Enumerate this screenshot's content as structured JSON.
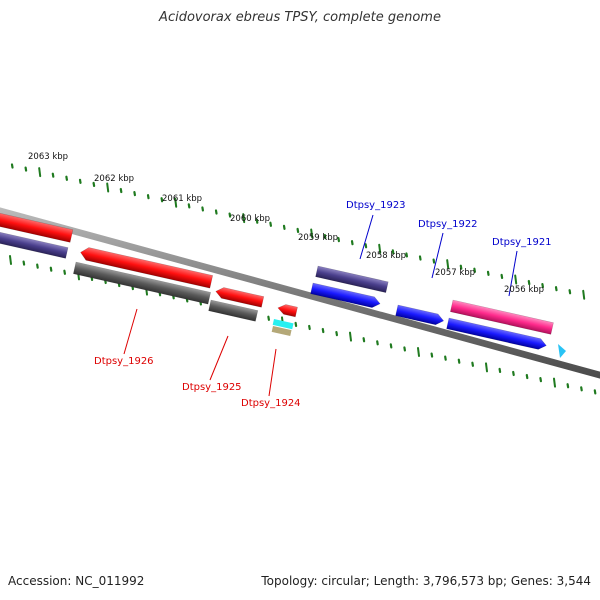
{
  "title": "Acidovorax ebreus TPSY, complete genome",
  "footer": {
    "accession": "Accession: NC_011992",
    "info": "Topology: circular; Length: 3,796,573 bp; Genes: 3,544"
  },
  "colors": {
    "backbone": "#8a8a8a",
    "tick": "#1f7a1f",
    "cds": "#ff1010",
    "gene": "#5a5a5a",
    "blue": "#1a1aff",
    "purple": "#4a3f8c",
    "magenta": "#ff2a8c",
    "cyan": "#28f0f0",
    "tan": "#b4a878",
    "light_blue": "#29c3f5",
    "label_red": "#dd0000",
    "label_blue": "#0000cc"
  },
  "kbp_ticks": [
    {
      "label": "2063 kbp"
    },
    {
      "label": "2062 kbp"
    },
    {
      "label": "2061 kbp"
    },
    {
      "label": "2060 kbp"
    },
    {
      "label": "2059 kbp"
    },
    {
      "label": "2058 kbp"
    },
    {
      "label": "2057 kbp"
    },
    {
      "label": "2056 kbp"
    }
  ],
  "gene_labels": [
    {
      "name": "Dtpsy_1926",
      "color": "label_red"
    },
    {
      "name": "Dtpsy_1925",
      "color": "label_red"
    },
    {
      "name": "Dtpsy_1924",
      "color": "label_red"
    },
    {
      "name": "Dtpsy_1923",
      "color": "label_blue"
    },
    {
      "name": "Dtpsy_1922",
      "color": "label_blue"
    },
    {
      "name": "Dtpsy_1921",
      "color": "label_blue"
    }
  ]
}
